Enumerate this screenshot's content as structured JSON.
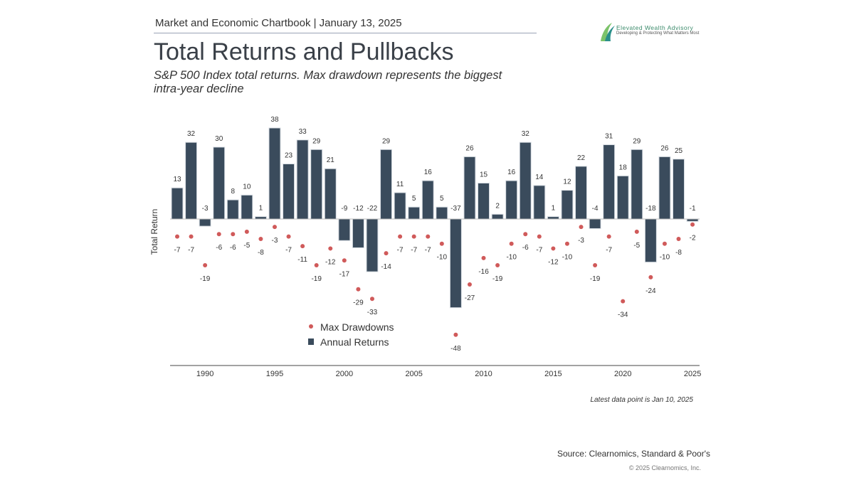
{
  "header": "Market and Economic Chartbook | January 13, 2025",
  "title": "Total Returns and Pullbacks",
  "subtitle": "S&P 500 Index total returns. Max drawdown represents the biggest intra-year decline",
  "logo": {
    "name": "Elevated Wealth Advisory",
    "tagline": "Developing & Protecting What Matters Most"
  },
  "note": "Latest data point is Jan 10, 2025",
  "source": "Source: Clearnomics, Standard & Poor's",
  "copyright": "© 2025 Clearnomics, Inc.",
  "colors": {
    "bar": "#3a4b5c",
    "dot": "#d05a5a"
  },
  "chart_data": {
    "type": "bar",
    "ylabel": "Total Return",
    "x_ticks": [
      "1990",
      "1995",
      "2000",
      "2005",
      "2010",
      "2015",
      "2020",
      "2025"
    ],
    "legend_placement": "bottom-center",
    "grid": false,
    "categories": [
      1988,
      1989,
      1990,
      1991,
      1992,
      1993,
      1994,
      1995,
      1996,
      1997,
      1998,
      1999,
      2000,
      2001,
      2002,
      2003,
      2004,
      2005,
      2006,
      2007,
      2008,
      2009,
      2010,
      2011,
      2012,
      2013,
      2014,
      2015,
      2016,
      2017,
      2018,
      2019,
      2020,
      2021,
      2022,
      2023,
      2024,
      2025
    ],
    "series": [
      {
        "name": "Annual Returns",
        "type": "bar",
        "values": [
          13,
          32,
          -3,
          30,
          8,
          10,
          1,
          38,
          23,
          33,
          29,
          21,
          -9,
          -12,
          -22,
          29,
          11,
          5,
          16,
          5,
          -37,
          26,
          15,
          2,
          16,
          32,
          14,
          1,
          12,
          22,
          -4,
          31,
          18,
          29,
          -18,
          26,
          25,
          -1
        ]
      },
      {
        "name": "Max Drawdowns",
        "type": "scatter",
        "values": [
          -7,
          -7,
          -19,
          -6,
          -6,
          -5,
          -8,
          -3,
          -7,
          -11,
          -19,
          -12,
          -17,
          -29,
          -33,
          -14,
          -7,
          -7,
          -7,
          -10,
          -48,
          -27,
          -16,
          -19,
          -10,
          -6,
          -7,
          -12,
          -10,
          -3,
          -19,
          -7,
          -34,
          -5,
          -24,
          -10,
          -8,
          -2
        ]
      }
    ]
  }
}
